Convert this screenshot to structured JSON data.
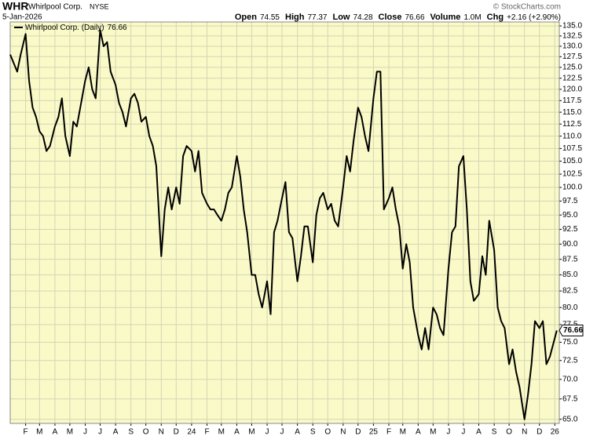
{
  "header": {
    "symbol": "WHR",
    "name": "Whirlpool Corp.",
    "exchange": "NYSE",
    "date": "5-Jan-2026",
    "credit": "© StockCharts.com",
    "quote": [
      {
        "label": "Open",
        "value": "74.55"
      },
      {
        "label": "High",
        "value": "77.37"
      },
      {
        "label": "Low",
        "value": "74.28"
      },
      {
        "label": "Close",
        "value": "76.66"
      },
      {
        "label": "Volume",
        "value": "1.0M"
      },
      {
        "label": "Chg",
        "value": "+2.16 (+2.90%)"
      }
    ]
  },
  "chart_data": {
    "type": "line",
    "log_scale": true,
    "grid": true,
    "legend": "top-left",
    "background": "#fafac8",
    "ylim": [
      64.5,
      136
    ],
    "xlim": [
      "2023-01-01",
      "2026-01-10"
    ],
    "yticks": [
      {
        "value": 65,
        "label": "65.0"
      },
      {
        "value": 67.5,
        "label": "67.5"
      },
      {
        "value": 70,
        "label": "70.0"
      },
      {
        "value": 72.5,
        "label": "72.5"
      },
      {
        "value": 75,
        "label": "75.0"
      },
      {
        "value": 77.5,
        "label": "77.5"
      },
      {
        "value": 80,
        "label": "80.0"
      },
      {
        "value": 82.5,
        "label": "82.5"
      },
      {
        "value": 85,
        "label": "85.0"
      },
      {
        "value": 87.5,
        "label": "87.5"
      },
      {
        "value": 90,
        "label": "90.0"
      },
      {
        "value": 92.5,
        "label": "92.5"
      },
      {
        "value": 95,
        "label": "95.0"
      },
      {
        "value": 97.5,
        "label": "97.5"
      },
      {
        "value": 100,
        "label": "100.0"
      },
      {
        "value": 102.5,
        "label": "102.5"
      },
      {
        "value": 105,
        "label": "105.0"
      },
      {
        "value": 107.5,
        "label": "107.5"
      },
      {
        "value": 110,
        "label": "110.0"
      },
      {
        "value": 112.5,
        "label": "112.5"
      },
      {
        "value": 115,
        "label": "115.0"
      },
      {
        "value": 117.5,
        "label": "117.5"
      },
      {
        "value": 120,
        "label": "120.0"
      },
      {
        "value": 122.5,
        "label": "122.5"
      },
      {
        "value": 125,
        "label": "125.0"
      },
      {
        "value": 127.5,
        "label": "127.5"
      },
      {
        "value": 130,
        "label": "130.0"
      },
      {
        "value": 132.5,
        "label": "132.5"
      },
      {
        "value": 135,
        "label": "135.0"
      }
    ],
    "xticks": [
      {
        "value": "2023-02-01",
        "label": "F"
      },
      {
        "value": "2023-03-01",
        "label": "M"
      },
      {
        "value": "2023-04-01",
        "label": "A"
      },
      {
        "value": "2023-05-01",
        "label": "M"
      },
      {
        "value": "2023-06-01",
        "label": "J"
      },
      {
        "value": "2023-07-01",
        "label": "J"
      },
      {
        "value": "2023-08-01",
        "label": "A"
      },
      {
        "value": "2023-09-01",
        "label": "S"
      },
      {
        "value": "2023-10-01",
        "label": "O"
      },
      {
        "value": "2023-11-01",
        "label": "N"
      },
      {
        "value": "2023-12-01",
        "label": "D"
      },
      {
        "value": "2024-01-01",
        "label": "24"
      },
      {
        "value": "2024-02-01",
        "label": "F"
      },
      {
        "value": "2024-03-01",
        "label": "M"
      },
      {
        "value": "2024-04-01",
        "label": "A"
      },
      {
        "value": "2024-05-01",
        "label": "M"
      },
      {
        "value": "2024-06-01",
        "label": "J"
      },
      {
        "value": "2024-07-01",
        "label": "J"
      },
      {
        "value": "2024-08-01",
        "label": "A"
      },
      {
        "value": "2024-09-01",
        "label": "S"
      },
      {
        "value": "2024-10-01",
        "label": "O"
      },
      {
        "value": "2024-11-01",
        "label": "N"
      },
      {
        "value": "2024-12-01",
        "label": "D"
      },
      {
        "value": "2025-01-01",
        "label": "25"
      },
      {
        "value": "2025-02-01",
        "label": "F"
      },
      {
        "value": "2025-03-01",
        "label": "M"
      },
      {
        "value": "2025-04-01",
        "label": "A"
      },
      {
        "value": "2025-05-01",
        "label": "M"
      },
      {
        "value": "2025-06-01",
        "label": "J"
      },
      {
        "value": "2025-07-01",
        "label": "J"
      },
      {
        "value": "2025-08-01",
        "label": "A"
      },
      {
        "value": "2025-09-01",
        "label": "S"
      },
      {
        "value": "2025-10-01",
        "label": "O"
      },
      {
        "value": "2025-11-01",
        "label": "N"
      },
      {
        "value": "2025-12-01",
        "label": "D"
      },
      {
        "value": "2026-01-01",
        "label": "26"
      }
    ],
    "series": [
      {
        "name": "Whirlpool Corp. (Daily)",
        "color": "#000000",
        "x": [
          "2023-01-01",
          "2023-01-08",
          "2023-01-15",
          "2023-01-22",
          "2023-02-01",
          "2023-02-08",
          "2023-02-15",
          "2023-02-22",
          "2023-03-01",
          "2023-03-08",
          "2023-03-15",
          "2023-03-22",
          "2023-04-01",
          "2023-04-08",
          "2023-04-15",
          "2023-04-22",
          "2023-05-01",
          "2023-05-08",
          "2023-05-15",
          "2023-05-22",
          "2023-06-01",
          "2023-06-08",
          "2023-06-15",
          "2023-06-22",
          "2023-07-01",
          "2023-07-08",
          "2023-07-15",
          "2023-07-22",
          "2023-08-01",
          "2023-08-08",
          "2023-08-15",
          "2023-08-22",
          "2023-09-01",
          "2023-09-08",
          "2023-09-15",
          "2023-09-22",
          "2023-10-01",
          "2023-10-08",
          "2023-10-15",
          "2023-10-22",
          "2023-11-01",
          "2023-11-08",
          "2023-11-15",
          "2023-11-22",
          "2023-12-01",
          "2023-12-08",
          "2023-12-15",
          "2023-12-22",
          "2024-01-01",
          "2024-01-08",
          "2024-01-15",
          "2024-01-22",
          "2024-02-01",
          "2024-02-08",
          "2024-02-15",
          "2024-02-22",
          "2024-03-01",
          "2024-03-08",
          "2024-03-15",
          "2024-03-22",
          "2024-04-01",
          "2024-04-08",
          "2024-04-15",
          "2024-04-22",
          "2024-05-01",
          "2024-05-08",
          "2024-05-15",
          "2024-05-22",
          "2024-06-01",
          "2024-06-08",
          "2024-06-15",
          "2024-06-22",
          "2024-07-01",
          "2024-07-08",
          "2024-07-15",
          "2024-07-22",
          "2024-08-01",
          "2024-08-08",
          "2024-08-15",
          "2024-08-22",
          "2024-09-01",
          "2024-09-08",
          "2024-09-15",
          "2024-09-22",
          "2024-10-01",
          "2024-10-08",
          "2024-10-15",
          "2024-10-22",
          "2024-11-01",
          "2024-11-08",
          "2024-11-15",
          "2024-11-22",
          "2024-12-01",
          "2024-12-08",
          "2024-12-15",
          "2024-12-22",
          "2025-01-01",
          "2025-01-08",
          "2025-01-15",
          "2025-01-22",
          "2025-02-01",
          "2025-02-08",
          "2025-02-15",
          "2025-02-22",
          "2025-03-01",
          "2025-03-08",
          "2025-03-15",
          "2025-03-22",
          "2025-04-01",
          "2025-04-08",
          "2025-04-15",
          "2025-04-22",
          "2025-05-01",
          "2025-05-08",
          "2025-05-15",
          "2025-05-22",
          "2025-06-01",
          "2025-06-08",
          "2025-06-15",
          "2025-06-22",
          "2025-07-01",
          "2025-07-08",
          "2025-07-15",
          "2025-07-22",
          "2025-08-01",
          "2025-08-08",
          "2025-08-15",
          "2025-08-22",
          "2025-09-01",
          "2025-09-08",
          "2025-09-15",
          "2025-09-22",
          "2025-10-01",
          "2025-10-08",
          "2025-10-15",
          "2025-10-22",
          "2025-11-01",
          "2025-11-08",
          "2025-11-15",
          "2025-11-22",
          "2025-12-01",
          "2025-12-08",
          "2025-12-15",
          "2025-12-22",
          "2026-01-05"
        ],
        "values": [
          128,
          126,
          124,
          128,
          133,
          122,
          116,
          114,
          111,
          110,
          107,
          108,
          112,
          114,
          118,
          110,
          106,
          113,
          112,
          116,
          122,
          125,
          120,
          118,
          134,
          130,
          131,
          124,
          121,
          117,
          115,
          112,
          118,
          119,
          117,
          113,
          114,
          110,
          108,
          104,
          88,
          96,
          100,
          96,
          100,
          97,
          106,
          108,
          107,
          103,
          107,
          99,
          97,
          96,
          96,
          95,
          94,
          96,
          99,
          100,
          106,
          102,
          96,
          92,
          85,
          85,
          82,
          80,
          84,
          79,
          92,
          94,
          98,
          101,
          92,
          91,
          84,
          88,
          93,
          93,
          87,
          95,
          98,
          99,
          96,
          97,
          94,
          93,
          100,
          106,
          103,
          109,
          116,
          114,
          110,
          107,
          118,
          124,
          124,
          96,
          98,
          100,
          96,
          93,
          86,
          90,
          87,
          80,
          76,
          74,
          77,
          74,
          80,
          79,
          77,
          76,
          86,
          92,
          93,
          104,
          106,
          96,
          84,
          81,
          82,
          88,
          85,
          94,
          89,
          80,
          78,
          77,
          72,
          74,
          71,
          69,
          65,
          68,
          72,
          78,
          77,
          78,
          72,
          73,
          76.66
        ]
      }
    ]
  }
}
